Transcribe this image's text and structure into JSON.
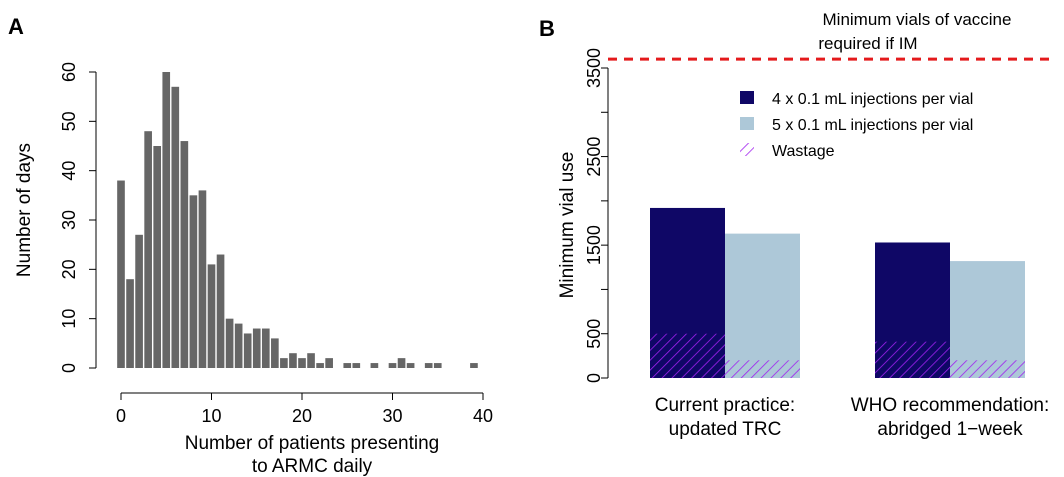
{
  "panels": {
    "a_label": "A",
    "b_label": "B"
  },
  "colors": {
    "hist_bar": "#666666",
    "four_dose": "#0f0766",
    "five_dose": "#adc8d8",
    "wastage": "#a020f0",
    "im_line": "#e41a1c"
  },
  "chart_data": [
    {
      "type": "bar",
      "title": "",
      "xlabel": "Number of patients presenting to ARMC daily",
      "xlabel_lines": [
        "Number of patients presenting",
        "to ARMC daily"
      ],
      "ylabel": "Number of days",
      "xlim": [
        -1.5,
        40
      ],
      "ylim": [
        0,
        62
      ],
      "x_ticks": [
        0,
        10,
        20,
        30,
        40
      ],
      "y_ticks": [
        0,
        10,
        20,
        30,
        40,
        50,
        60
      ],
      "x": [
        0,
        1,
        2,
        3,
        4,
        5,
        6,
        7,
        8,
        9,
        10,
        11,
        12,
        13,
        14,
        15,
        16,
        17,
        18,
        19,
        20,
        21,
        22,
        23,
        24,
        25,
        26,
        27,
        28,
        29,
        30,
        31,
        32,
        33,
        34,
        35,
        36,
        37,
        38,
        39
      ],
      "values": [
        38,
        18,
        27,
        48,
        45,
        60,
        57,
        46,
        35,
        36,
        21,
        23,
        10,
        9,
        7,
        8,
        8,
        6,
        2,
        3,
        2,
        3,
        1,
        2,
        0,
        1,
        1,
        0,
        1,
        0,
        1,
        2,
        1,
        0,
        1,
        1,
        0,
        0,
        0,
        1
      ]
    },
    {
      "type": "bar",
      "title": "",
      "xlabel": "",
      "ylabel": "Minimum vial use",
      "ylim": [
        0,
        3600
      ],
      "y_ticks": [
        0,
        500,
        1500,
        2500,
        3500
      ],
      "categories": [
        "Current practice:\nupdated TRC",
        "WHO recommendation:\nabridged 1−week"
      ],
      "category_lines": [
        [
          "Current practice:",
          "updated TRC"
        ],
        [
          "WHO recommendation:",
          "abridged 1−week"
        ]
      ],
      "series": [
        {
          "name": "4 x 0.1 mL injections per vial",
          "values": [
            1920,
            1530
          ],
          "wastage": [
            500,
            410
          ]
        },
        {
          "name": "5 x 0.1 mL injections per vial",
          "values": [
            1630,
            1320
          ],
          "wastage": [
            200,
            200
          ]
        }
      ],
      "legend_extra": "Wastage",
      "legend_position": "top-right",
      "reference_line": {
        "value": 3600,
        "label_lines": [
          "Minimum vials of vaccine",
          "required if IM"
        ],
        "style": "dashed"
      }
    }
  ]
}
